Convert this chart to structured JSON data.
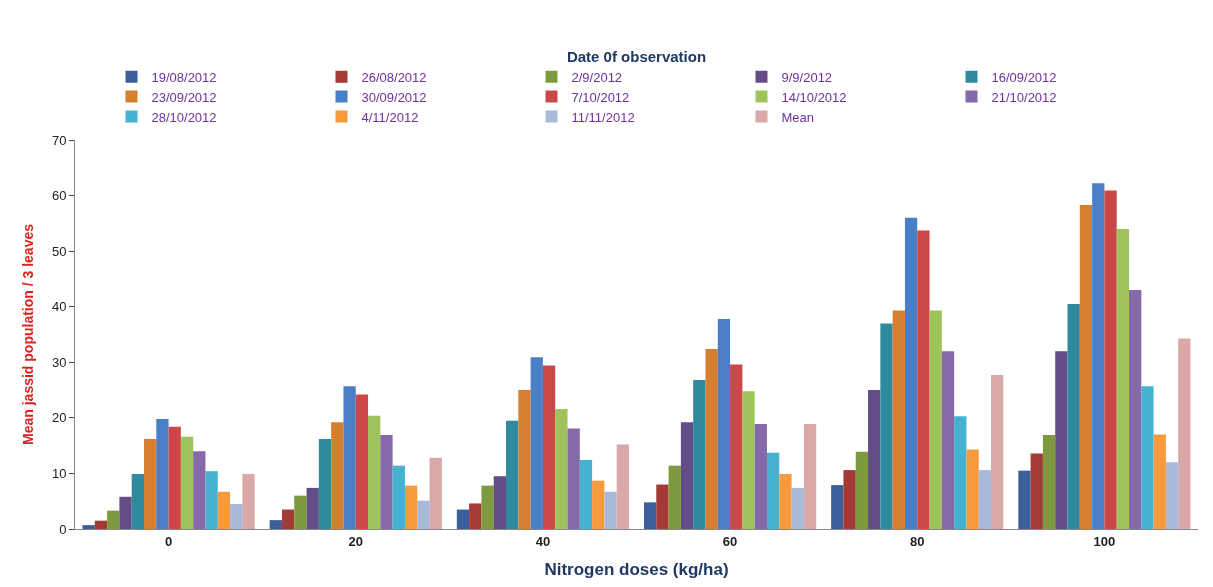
{
  "chart_data": {
    "type": "bar",
    "xlabel": "Nitrogen doses (kg/ha)",
    "ylabel": "Mean jassid population / 3 leaves",
    "legend_title": "Date 0f observation",
    "legend": "top",
    "categories": [
      "0",
      "20",
      "40",
      "60",
      "80",
      "100"
    ],
    "ylim": [
      0,
      70
    ],
    "yticks": [
      0,
      10,
      20,
      30,
      40,
      50,
      60,
      70
    ],
    "series": [
      {
        "name": "19/08/2012",
        "color": "#3c5f9a",
        "values": [
          0.7,
          1.6,
          3.5,
          4.8,
          7.9,
          10.5
        ]
      },
      {
        "name": "26/08/2012",
        "color": "#a33a36",
        "values": [
          1.5,
          3.5,
          4.6,
          8.0,
          10.6,
          13.6
        ]
      },
      {
        "name": "2/9/2012",
        "color": "#7e9a3f",
        "values": [
          3.3,
          6.0,
          7.8,
          11.4,
          13.9,
          16.9
        ]
      },
      {
        "name": "9/9/2012",
        "color": "#634d85",
        "values": [
          5.8,
          7.4,
          9.5,
          19.2,
          25.0,
          32.0
        ]
      },
      {
        "name": "16/09/2012",
        "color": "#2f8a9e",
        "values": [
          9.9,
          16.2,
          19.5,
          26.8,
          37.0,
          40.5
        ]
      },
      {
        "name": "23/09/2012",
        "color": "#d67f30",
        "values": [
          16.2,
          19.2,
          25.0,
          32.4,
          39.3,
          58.3
        ]
      },
      {
        "name": "30/09/2012",
        "color": "#4a7fc8",
        "values": [
          19.8,
          25.7,
          30.9,
          37.8,
          56.0,
          62.2
        ]
      },
      {
        "name": "7/10/2012",
        "color": "#cc4747",
        "values": [
          18.4,
          24.2,
          29.4,
          29.6,
          53.7,
          60.9
        ]
      },
      {
        "name": "14/10/2012",
        "color": "#9dc35a",
        "values": [
          16.6,
          20.4,
          21.6,
          24.8,
          39.3,
          54.0
        ]
      },
      {
        "name": "21/10/2012",
        "color": "#8669a8",
        "values": [
          14.0,
          16.9,
          18.1,
          18.9,
          32.0,
          43.0
        ]
      },
      {
        "name": "28/10/2012",
        "color": "#45b3cf",
        "values": [
          10.4,
          11.4,
          12.4,
          13.7,
          20.3,
          25.7
        ]
      },
      {
        "name": "4/11/2012",
        "color": "#f79a3e",
        "values": [
          6.7,
          7.8,
          8.7,
          9.9,
          14.3,
          17.0
        ]
      },
      {
        "name": "11/11/2012",
        "color": "#a9b9da",
        "values": [
          4.5,
          5.1,
          6.7,
          7.4,
          10.6,
          12.0
        ]
      },
      {
        "name": "Mean",
        "color": "#d9a8a8",
        "values": [
          9.9,
          12.8,
          15.2,
          18.9,
          27.7,
          34.3
        ]
      }
    ]
  }
}
